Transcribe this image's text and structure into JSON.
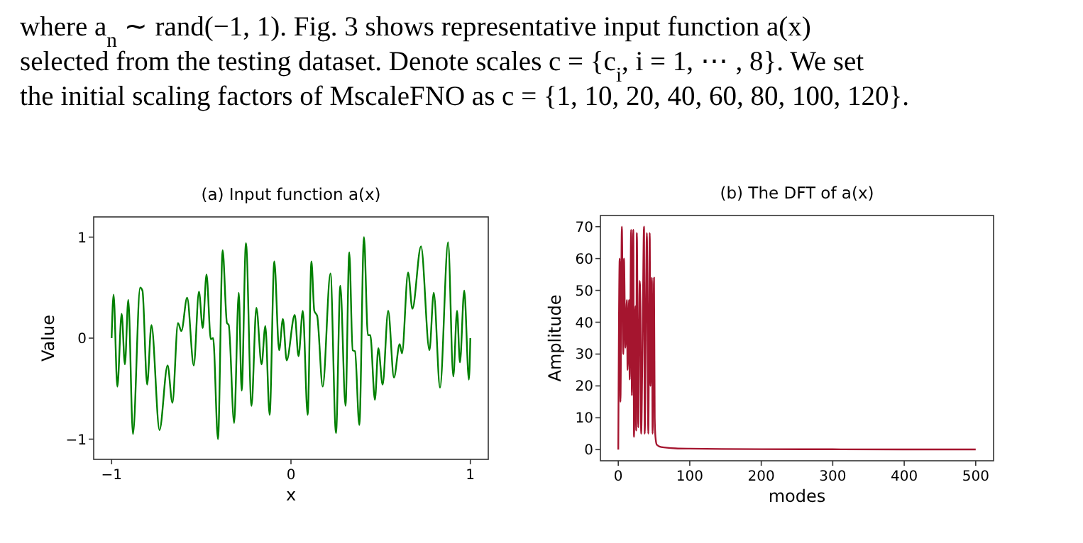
{
  "chart_data": [
    {
      "type": "other",
      "annotations": [
        "where a$_{n}$ ∼ rand(−1, 1).  Fig. 3 shows representative input function a(x)",
        "selected from the testing dataset.  Denote scales c = {c$_{i}$, i = 1, ⋯ , 8}.  We set",
        "the initial scaling factors of MscaleFNO as c = {1,  10,  20,  40,  60,  80,  100,  120}."
      ]
    },
    {
      "type": "line",
      "title": "(a) Input function a(x)",
      "xlabel": "x",
      "ylabel": "Value",
      "xlim": [
        -1.1,
        1.1
      ],
      "ylim": [
        -1.2,
        1.2
      ],
      "xticks": [
        {
          "value": -1,
          "label": "−1"
        },
        0,
        1
      ],
      "yticks": [
        {
          "value": -1,
          "label": "−1"
        },
        0,
        1
      ],
      "series": [
        {
          "color": "#008000",
          "x": [
            -1,
            -0.989,
            -0.968,
            -0.944,
            -0.926,
            -0.907,
            -0.881,
            -0.841,
            -0.828,
            -0.802,
            -0.778,
            -0.733,
            -0.688,
            -0.661,
            -0.63,
            -0.611,
            -0.579,
            -0.542,
            -0.513,
            -0.492,
            -0.471,
            -0.447,
            -0.434,
            -0.407,
            -0.381,
            -0.357,
            -0.347,
            -0.317,
            -0.291,
            -0.275,
            -0.251,
            -0.22,
            -0.193,
            -0.164,
            -0.143,
            -0.119,
            -0.093,
            -0.066,
            -0.045,
            -0.024,
            0.021,
            0.042,
            0.066,
            0.093,
            0.114,
            0.13,
            0.146,
            0.177,
            0.22,
            0.251,
            0.275,
            0.304,
            0.325,
            0.344,
            0.357,
            0.381,
            0.407,
            0.429,
            0.442,
            0.468,
            0.487,
            0.511,
            0.542,
            0.574,
            0.606,
            0.619,
            0.653,
            0.677,
            0.725,
            0.772,
            0.796,
            0.831,
            0.876,
            0.905,
            0.926,
            0.942,
            0.966,
            0.992,
            1
          ],
          "values": [
            0,
            0.43,
            -0.48,
            0.24,
            -0.26,
            0.38,
            -0.95,
            0.5,
            0.47,
            -0.46,
            0.13,
            -0.91,
            -0.27,
            -0.64,
            0.15,
            0.07,
            0.4,
            -0.27,
            0.46,
            0.1,
            0.63,
            -0.01,
            0,
            -1,
            0.87,
            0.15,
            0.13,
            -0.84,
            0.45,
            -0.52,
            0.94,
            -0.67,
            0.3,
            -0.26,
            0.12,
            -0.76,
            0.76,
            -0.12,
            0.19,
            -0.22,
            0.23,
            -0.18,
            0.27,
            -0.76,
            0.76,
            0.27,
            0.22,
            -0.48,
            0.64,
            -0.94,
            0.52,
            -0.67,
            0.85,
            -0.12,
            -0.13,
            -0.86,
            1,
            0.03,
            0.03,
            -0.61,
            -0.1,
            -0.46,
            0.27,
            -0.39,
            -0.06,
            -0.15,
            0.65,
            0.29,
            0.91,
            -0.12,
            0.45,
            -0.49,
            0.95,
            -0.38,
            0.27,
            -0.24,
            0.47,
            -0.41,
            0
          ]
        }
      ]
    },
    {
      "type": "line",
      "title": "(b) The DFT of a(x)",
      "xlabel": "modes",
      "ylabel": "Amplitude",
      "xlim": [
        -25,
        525
      ],
      "ylim": [
        -3.5,
        73.5
      ],
      "xticks": [
        0,
        100,
        200,
        300,
        400,
        500
      ],
      "yticks": [
        0,
        10,
        20,
        30,
        40,
        50,
        60,
        70
      ],
      "series": [
        {
          "color": "#a5152f",
          "x": [
            0,
            2,
            3,
            5,
            7,
            8,
            10,
            12,
            13,
            15,
            16,
            18,
            19,
            21,
            22,
            24,
            25,
            26,
            28,
            30,
            31,
            32,
            34,
            36,
            37,
            39,
            40,
            42,
            44,
            45,
            47,
            48,
            50,
            51,
            52,
            54,
            60,
            80,
            100,
            200,
            300,
            400,
            500
          ],
          "values": [
            0,
            60,
            15,
            70,
            30,
            60,
            32,
            47,
            25,
            47,
            22,
            69,
            17,
            69,
            4,
            45,
            6,
            68,
            7,
            53,
            45,
            5,
            35,
            70,
            5,
            52,
            68,
            5,
            68,
            20,
            54,
            5,
            54,
            10,
            4,
            1.5,
            0.8,
            0.4,
            0.3,
            0.15,
            0.1,
            0.05,
            0.05
          ]
        }
      ]
    }
  ]
}
